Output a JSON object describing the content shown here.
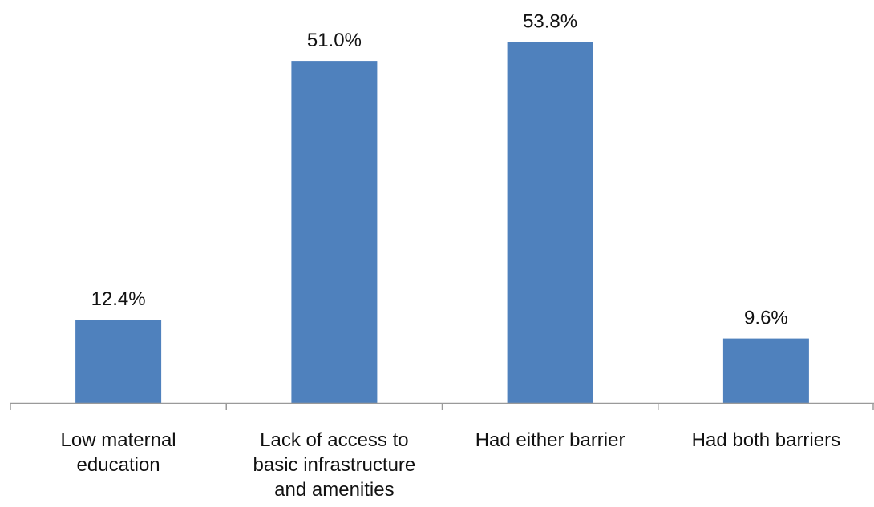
{
  "chart_data": {
    "type": "bar",
    "title": "",
    "xlabel": "",
    "ylabel": "",
    "ylim": [
      0,
      60
    ],
    "grid": false,
    "legend": "none",
    "bar_color": "#4F81BD",
    "axis_color": "#9a9a9a",
    "categories": [
      [
        "Low maternal",
        "education"
      ],
      [
        "Lack of access to",
        "basic infrastructure",
        "and amenities"
      ],
      [
        "Had either barrier"
      ],
      [
        "Had both barriers"
      ]
    ],
    "values": [
      12.4,
      51.0,
      53.8,
      9.6
    ],
    "value_labels": [
      "12.4%",
      "51.0%",
      "53.8%",
      "9.6%"
    ]
  }
}
